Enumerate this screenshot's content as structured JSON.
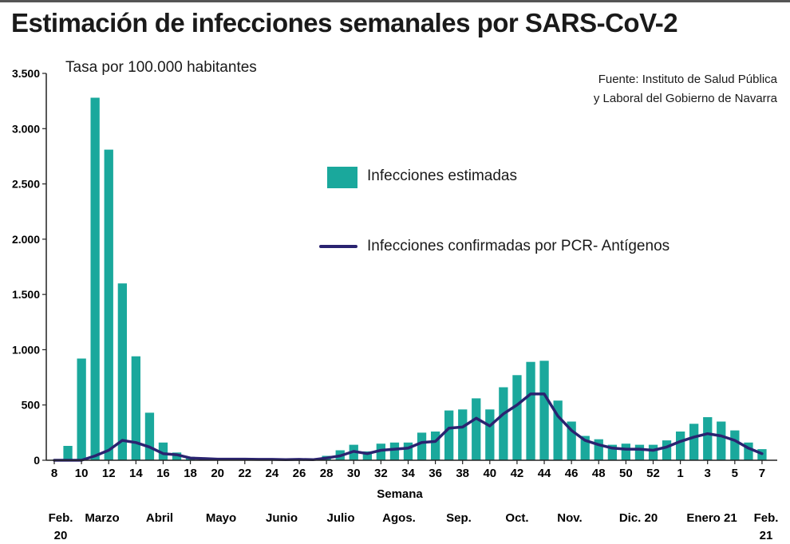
{
  "header": {
    "title": "Estimación de infecciones semanales por SARS-CoV-2",
    "subtitle": "Tasa por 100.000 habitantes",
    "source_line1": "Fuente: Instituto de Salud Pública",
    "source_line2": "y Laboral del Gobierno de Navarra"
  },
  "colors": {
    "bars": "#1aa89c",
    "line": "#2a2370",
    "axis": "#222222"
  },
  "chart_data": {
    "type": "bar",
    "title": "Estimación de infecciones semanales por SARS-CoV-2",
    "subtitle": "Tasa por 100.000 habitantes",
    "xlabel": "Semana",
    "ylabel": "",
    "ylim": [
      0,
      3500
    ],
    "yticks": [
      0,
      500,
      1000,
      1500,
      2000,
      2500,
      3000,
      3500
    ],
    "ytick_labels": [
      "0",
      "500",
      "1.000",
      "1.500",
      "2.000",
      "2.500",
      "3.000",
      "3.500"
    ],
    "grid": false,
    "legend_position": "center-right",
    "xtick_labels": [
      "8",
      "10",
      "12",
      "14",
      "16",
      "18",
      "20",
      "22",
      "24",
      "26",
      "28",
      "30",
      "32",
      "34",
      "36",
      "38",
      "40",
      "42",
      "44",
      "46",
      "48",
      "50",
      "52",
      "1",
      "3",
      "5",
      "7"
    ],
    "month_labels": [
      "Feb.\n20",
      "Marzo",
      "Abril",
      "Mayo",
      "Junio",
      "Julio",
      "Agos.",
      "Sep.",
      "Oct.",
      "Nov.",
      "Dic. 20",
      "Enero 21",
      "Feb.\n21"
    ],
    "weeks": [
      "8",
      "9",
      "10",
      "11",
      "12",
      "13",
      "14",
      "15",
      "16",
      "17",
      "18",
      "19",
      "20",
      "21",
      "22",
      "23",
      "24",
      "25",
      "26",
      "27",
      "28",
      "29",
      "30",
      "31",
      "32",
      "33",
      "34",
      "35",
      "36",
      "37",
      "38",
      "39",
      "40",
      "41",
      "42",
      "43",
      "44",
      "45",
      "46",
      "47",
      "48",
      "49",
      "50",
      "51",
      "52",
      "53",
      "1",
      "2",
      "3",
      "4",
      "5",
      "6",
      "7"
    ],
    "series": [
      {
        "name": "Infecciones estimadas",
        "kind": "bar",
        "values": [
          0,
          130,
          920,
          3280,
          2810,
          1600,
          940,
          430,
          160,
          70,
          30,
          20,
          15,
          10,
          10,
          10,
          10,
          10,
          10,
          10,
          40,
          90,
          140,
          80,
          150,
          160,
          160,
          250,
          260,
          450,
          460,
          560,
          460,
          660,
          770,
          890,
          900,
          540,
          350,
          220,
          190,
          140,
          150,
          140,
          140,
          180,
          260,
          330,
          390,
          350,
          270,
          160,
          100
        ]
      },
      {
        "name": "Infecciones confirmadas por PCR- Antígenos",
        "kind": "line",
        "values": [
          0,
          0,
          0,
          40,
          90,
          180,
          160,
          120,
          60,
          50,
          20,
          15,
          10,
          10,
          10,
          8,
          8,
          5,
          8,
          5,
          20,
          40,
          80,
          60,
          90,
          100,
          110,
          160,
          170,
          290,
          300,
          380,
          310,
          420,
          500,
          600,
          600,
          400,
          270,
          180,
          140,
          110,
          100,
          100,
          90,
          120,
          170,
          210,
          240,
          220,
          180,
          110,
          60
        ]
      }
    ]
  }
}
